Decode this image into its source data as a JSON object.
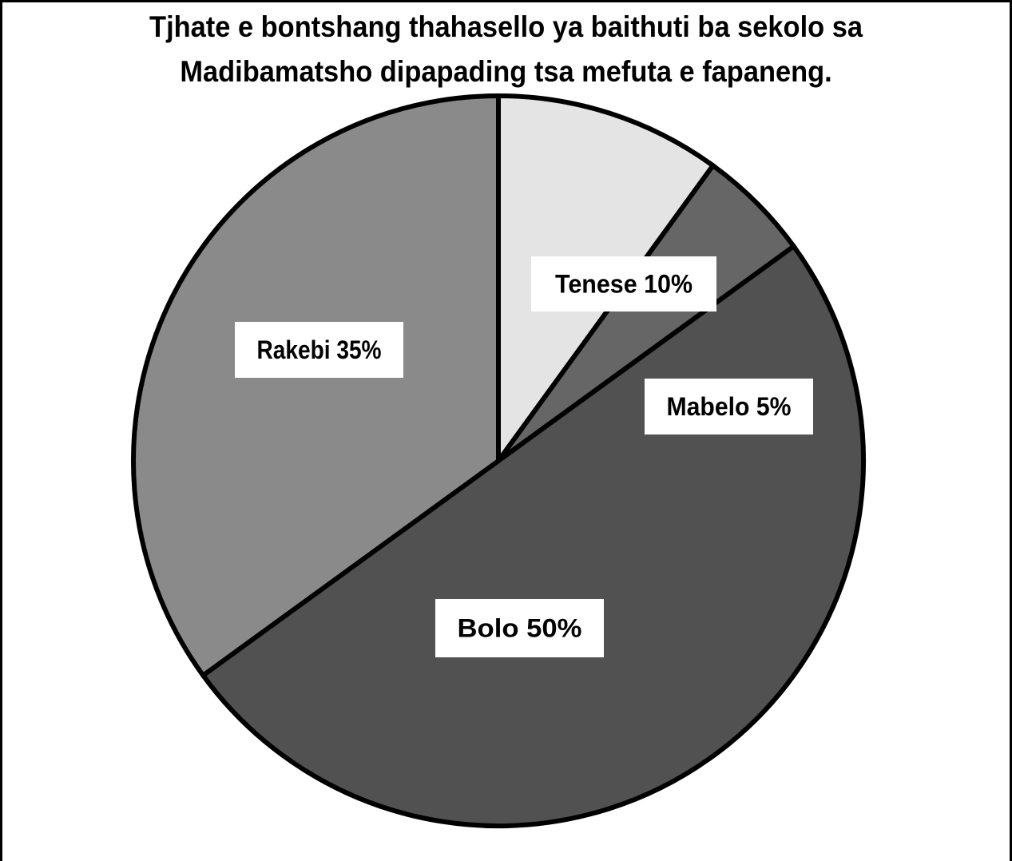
{
  "chart_data": {
    "type": "pie",
    "title_lines": [
      "Tjhate e bontshang thahasello ya baithuti ba sekolo sa",
      "Madibamatsho dipapading tsa mefuta e fapaneng."
    ],
    "slices": [
      {
        "label": "Tenese 10%",
        "category": "Tenese",
        "value": 10,
        "color": "#e4e4e4"
      },
      {
        "label": "Mabelo 5%",
        "category": "Mabelo",
        "value": 5,
        "color": "#666666"
      },
      {
        "label": "Bolo 50%",
        "category": "Bolo",
        "value": 50,
        "color": "#515151"
      },
      {
        "label": "Rakebi 35%",
        "category": "Rakebi",
        "value": 35,
        "color": "#8a8a8a"
      }
    ],
    "start": "12 o'clock",
    "direction": "clockwise",
    "legend": "none",
    "outline_color": "#000000"
  }
}
